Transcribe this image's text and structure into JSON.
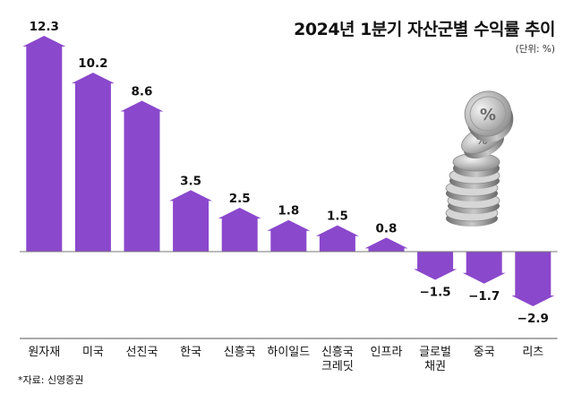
{
  "chart_data": {
    "type": "bar",
    "title": "2024년 1분기 자산군별 수익률 추이",
    "unit_note": "(단위: %)",
    "categories": [
      [
        "원자재"
      ],
      [
        "미국"
      ],
      [
        "선진국"
      ],
      [
        "한국"
      ],
      [
        "신흥국"
      ],
      [
        "하이일드"
      ],
      [
        "신흥국",
        "크레딧"
      ],
      [
        "인프라"
      ],
      [
        "글로벌",
        "채권"
      ],
      [
        "중국"
      ],
      [
        "리츠"
      ]
    ],
    "values": [
      12.3,
      10.2,
      8.6,
      3.5,
      2.5,
      1.8,
      1.5,
      0.8,
      -1.5,
      -1.7,
      -2.9
    ],
    "value_labels": [
      "12.3",
      "10.2",
      "8.6",
      "3.5",
      "2.5",
      "1.8",
      "1.5",
      "0.8",
      "−1.5",
      "−1.7",
      "−2.9"
    ],
    "ylim": [
      -2.9,
      12.3
    ],
    "xlabel": "",
    "ylabel": "",
    "source": "*자료: 신영증권",
    "bar_color": "#8a48cc"
  }
}
